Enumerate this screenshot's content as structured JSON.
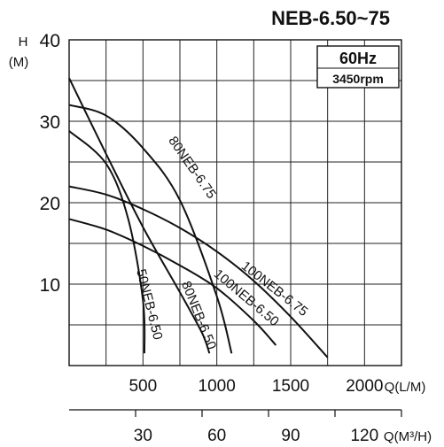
{
  "chart_data": {
    "type": "line",
    "title": "NEB-6.50~75",
    "badge": {
      "frequency": "60Hz",
      "speed": "3450rpm"
    },
    "y_axis": {
      "label_top": "H",
      "label_unit": "(M)",
      "ticks": [
        "10",
        "20",
        "30",
        "40"
      ],
      "range": [
        0,
        40
      ]
    },
    "x_axis": {
      "ticks": [
        "500",
        "1000",
        "1500",
        "2000"
      ],
      "unit": "Q(L/M)",
      "range": [
        0,
        2250
      ]
    },
    "x2_axis": {
      "ticks": [
        "30",
        "60",
        "90",
        "120"
      ],
      "unit": "Q(M³/H)",
      "range": [
        0,
        135
      ]
    },
    "grid": true,
    "series": [
      {
        "name": "50NEB-6.50",
        "points": [
          [
            0,
            28.8
          ],
          [
            250,
            24.8
          ],
          [
            400,
            18
          ],
          [
            500,
            8
          ],
          [
            510,
            1.5
          ]
        ]
      },
      {
        "name": "80NEB-6.50",
        "points": [
          [
            0,
            35.3
          ],
          [
            250,
            26
          ],
          [
            500,
            17
          ],
          [
            750,
            9
          ],
          [
            900,
            4
          ],
          [
            950,
            1.5
          ]
        ]
      },
      {
        "name": "80NEB-6.75",
        "points": [
          [
            0,
            32
          ],
          [
            250,
            30.7
          ],
          [
            500,
            26.7
          ],
          [
            750,
            20.3
          ],
          [
            1000,
            8.5
          ],
          [
            1100,
            1.5
          ]
        ]
      },
      {
        "name": "100NEB-6.50",
        "points": [
          [
            0,
            18
          ],
          [
            250,
            16.7
          ],
          [
            500,
            14.7
          ],
          [
            750,
            12.3
          ],
          [
            1000,
            9.5
          ],
          [
            1250,
            5.5
          ],
          [
            1400,
            2.5
          ]
        ]
      },
      {
        "name": "100NEB-6.75",
        "points": [
          [
            0,
            22
          ],
          [
            250,
            21
          ],
          [
            500,
            19.2
          ],
          [
            750,
            16.9
          ],
          [
            1000,
            14
          ],
          [
            1250,
            10.4
          ],
          [
            1500,
            6
          ],
          [
            1750,
            1
          ]
        ]
      }
    ],
    "curve_labels": [
      "50NEB-6.50",
      "80NEB-6.50",
      "80NEB-6.75",
      "100NEB-6.50",
      "100NEB-6.75"
    ]
  }
}
